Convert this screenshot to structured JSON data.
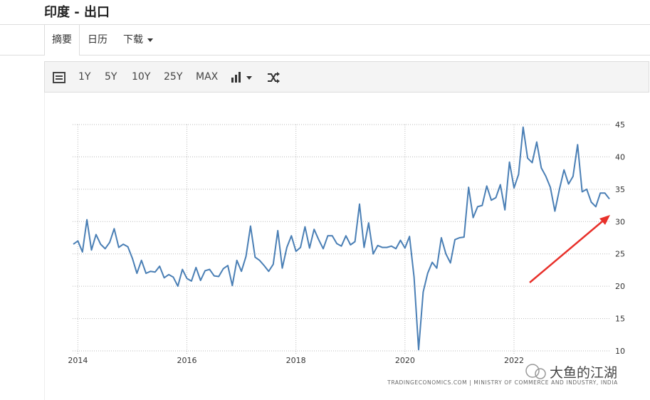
{
  "header": {
    "title": "印度 - 出口"
  },
  "tabs": [
    "摘要",
    "日历",
    "下载"
  ],
  "toolbar": [
    "1Y",
    "5Y",
    "10Y",
    "25Y",
    "MAX"
  ],
  "chart_data": {
    "type": "line",
    "categories": [
      null,
      "2014",
      null,
      null,
      null,
      null,
      null,
      null,
      null,
      null,
      null,
      null,
      null,
      null,
      null,
      null,
      null,
      null,
      null,
      null,
      null,
      null,
      null,
      null,
      null,
      "2016",
      null,
      null,
      null,
      null,
      null,
      null,
      null,
      null,
      null,
      null,
      null,
      null,
      null,
      null,
      null,
      null,
      null,
      null,
      null,
      null,
      null,
      null,
      null,
      "2018",
      null,
      null,
      null,
      null,
      null,
      null,
      null,
      null,
      null,
      null,
      null,
      null,
      null,
      null,
      null,
      null,
      null,
      null,
      null,
      null,
      null,
      null,
      null,
      "2020",
      null,
      null,
      null,
      null,
      null,
      null,
      null,
      null,
      null,
      null,
      null,
      null,
      null,
      null,
      null,
      null,
      null,
      null,
      null,
      null,
      null,
      null,
      null,
      "2022",
      null,
      null,
      null,
      null,
      null,
      null,
      null,
      null,
      null,
      null,
      null,
      null,
      null,
      null,
      null,
      null,
      null,
      null,
      null,
      null,
      null
    ],
    "values": [
      26.5,
      27.0,
      25.3,
      30.3,
      25.6,
      28.0,
      26.5,
      25.8,
      26.8,
      28.9,
      26.0,
      26.5,
      26.1,
      24.3,
      22.0,
      24.0,
      22.0,
      22.3,
      22.2,
      23.1,
      21.3,
      21.8,
      21.4,
      20.0,
      22.6,
      21.2,
      20.8,
      22.9,
      20.9,
      22.4,
      22.6,
      21.6,
      21.5,
      22.7,
      23.2,
      20.1,
      24.0,
      22.3,
      24.6,
      29.3,
      24.5,
      24.0,
      23.2,
      22.3,
      23.4,
      28.6,
      22.8,
      26.0,
      27.8,
      25.4,
      26.0,
      29.2,
      25.9,
      28.8,
      27.2,
      25.8,
      27.8,
      27.8,
      26.6,
      26.2,
      27.8,
      26.4,
      26.9,
      32.7,
      26.0,
      29.8,
      25.0,
      26.3,
      26.0,
      26.0,
      26.2,
      25.8,
      27.1,
      25.9,
      27.7,
      21.4,
      10.2,
      19.1,
      22.0,
      23.7,
      22.8,
      27.5,
      25.0,
      23.6,
      27.2,
      27.5,
      27.6,
      35.3,
      30.6,
      32.3,
      32.5,
      35.5,
      33.3,
      33.7,
      35.7,
      31.8,
      39.2,
      35.2,
      37.3,
      44.6,
      39.8,
      39.1,
      42.3,
      38.3,
      37.0,
      35.3,
      31.6,
      35.0,
      38.0,
      35.8,
      37.0,
      41.9,
      34.6,
      35.0,
      33.0,
      32.3,
      34.4,
      34.4,
      33.5
    ],
    "color": "#4a7fb5",
    "ylim": [
      10,
      45
    ],
    "yticks": [
      10,
      15,
      20,
      25,
      30,
      35,
      40,
      45
    ],
    "grid": true,
    "source": "TRADINGECONOMICS.COM  |  MINISTRY OF COMMERCE AND INDUSTRY, INDIA"
  },
  "watermark": "大鱼的江湖"
}
